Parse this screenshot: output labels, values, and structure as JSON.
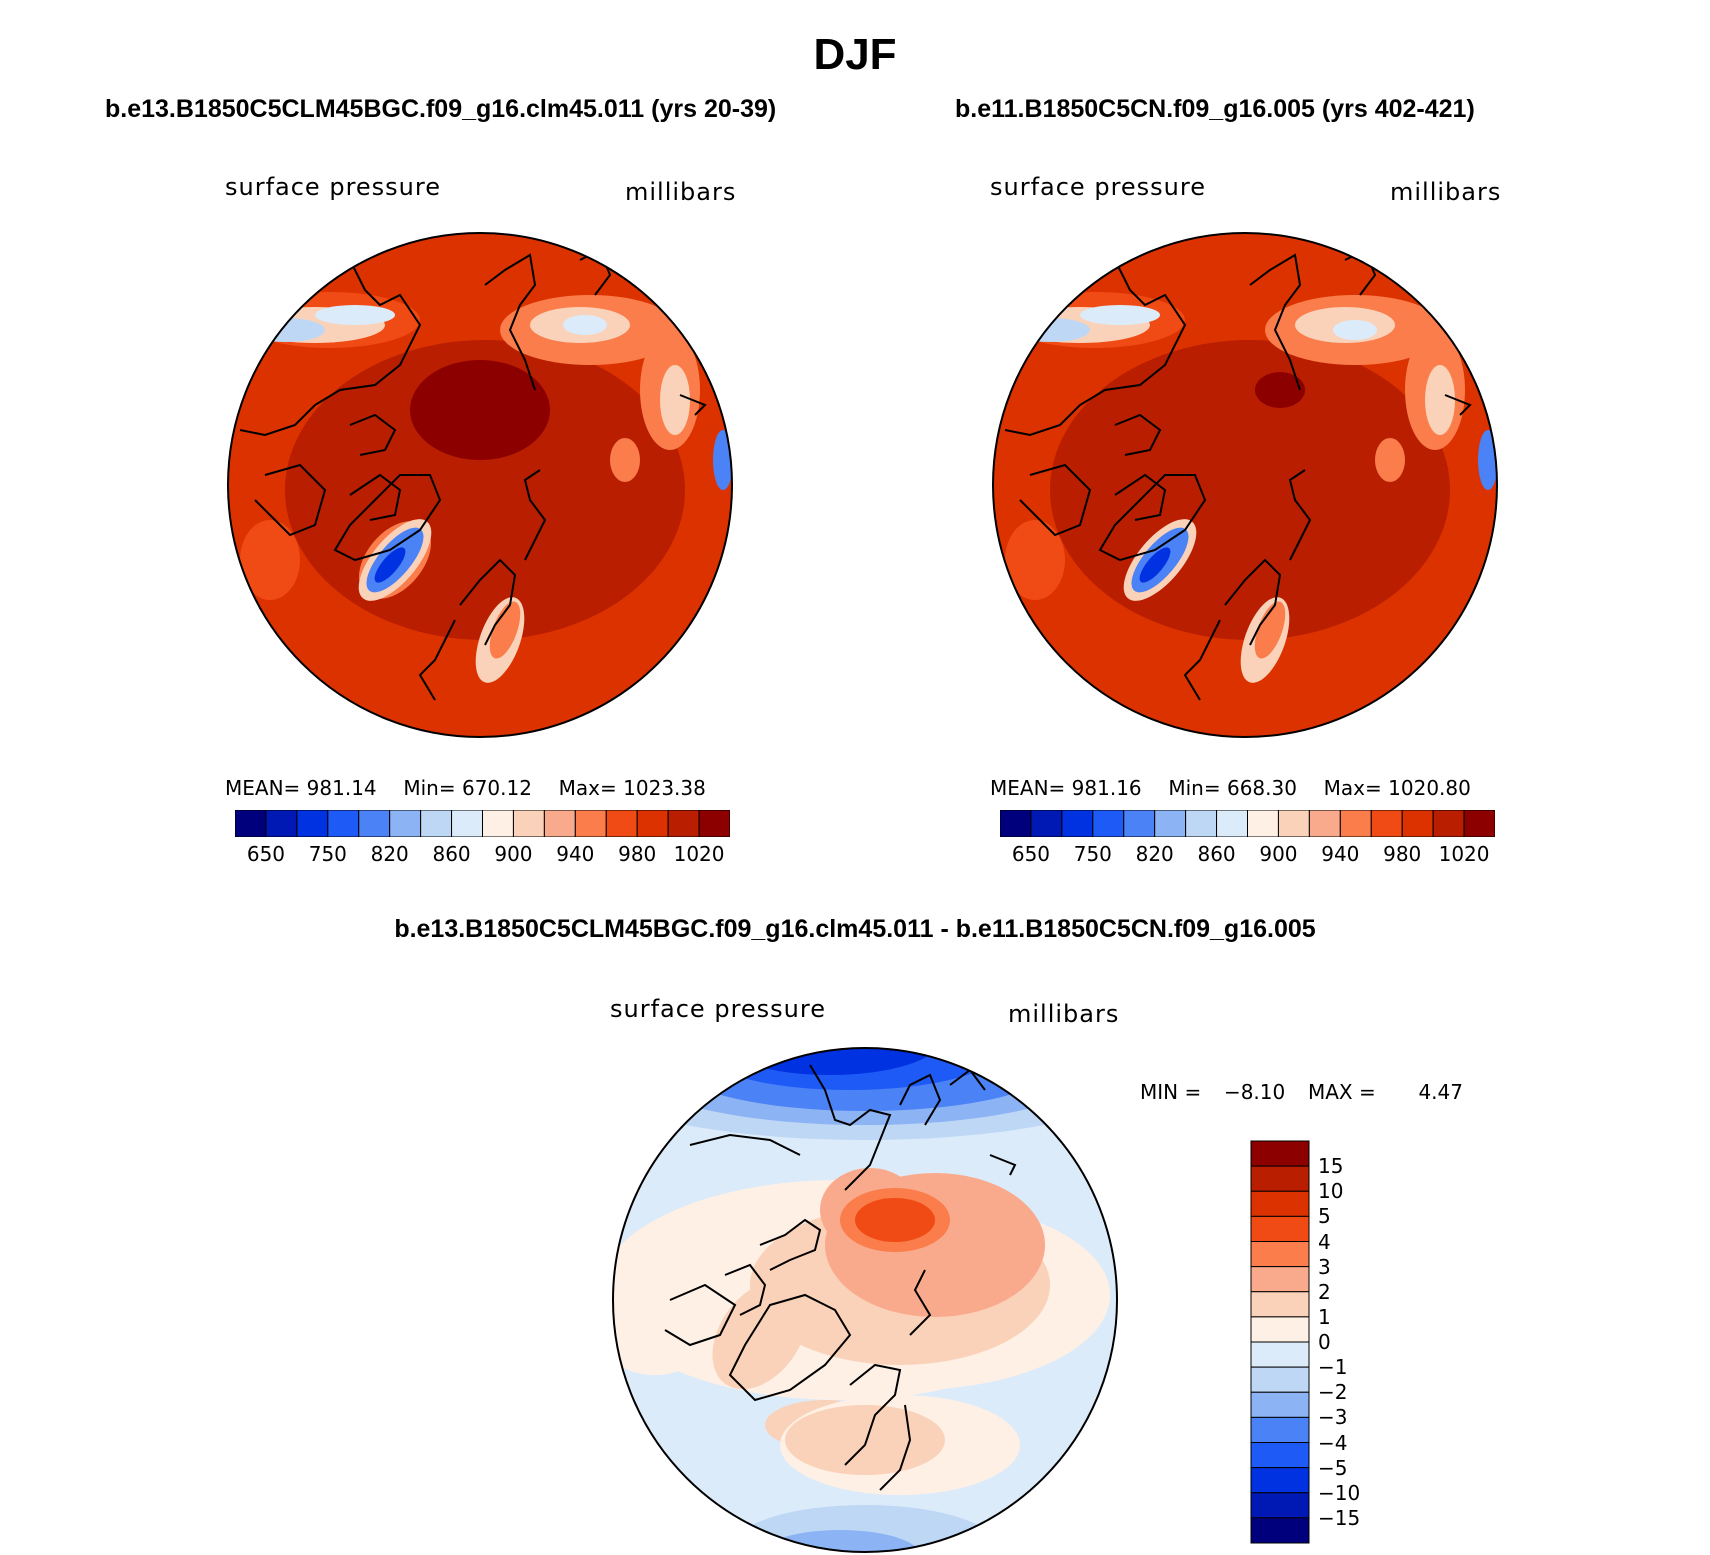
{
  "title": "DJF",
  "units_label": "millibars",
  "variable_label": "surface pressure",
  "abs_palette": [
    "#00007d",
    "#0019b4",
    "#0032e1",
    "#1e5af5",
    "#4b82f5",
    "#8cb4f5",
    "#bed7f5",
    "#dcebfa",
    "#fff0e6",
    "#fad2b9",
    "#faaa8c",
    "#fa7d4b",
    "#f04b14",
    "#dc3200",
    "#b91e00",
    "#8c0000"
  ],
  "abs_ticks": [
    "650",
    "750",
    "820",
    "860",
    "900",
    "940",
    "980",
    "1020"
  ],
  "diff_palette": [
    "#00007d",
    "#0019b4",
    "#0032e1",
    "#1e5af5",
    "#4b82f5",
    "#8cb4f5",
    "#bed7f5",
    "#dcebfa",
    "#fff0e6",
    "#fad2b9",
    "#faaa8c",
    "#fa7d4b",
    "#f04b14",
    "#dc3200",
    "#b91e00",
    "#8c0000"
  ],
  "diff_ticks": [
    "15",
    "10",
    "5",
    "4",
    "3",
    "2",
    "1",
    "0",
    "−1",
    "−2",
    "−3",
    "−4",
    "−5",
    "−10",
    "−15"
  ],
  "panels": [
    {
      "title": "b.e13.B1850C5CLM45BGC.f09_g16.clm45.011 (yrs 20-39)",
      "mean_label": "MEAN=",
      "mean": "981.14",
      "min_label": "Min=",
      "min": "670.12",
      "max_label": "Max=",
      "max": "1023.38"
    },
    {
      "title": "b.e11.B1850C5CN.f09_g16.005 (yrs 402-421)",
      "mean_label": "MEAN=",
      "mean": "981.16",
      "min_label": "Min=",
      "min": "668.30",
      "max_label": "Max=",
      "max": "1020.80"
    }
  ],
  "difference": {
    "title": "b.e13.B1850C5CLM45BGC.f09_g16.clm45.011 - b.e11.B1850C5CN.f09_g16.005",
    "min_label": "MIN =",
    "min": "−8.10",
    "max_label": "MAX =",
    "max": "4.47"
  },
  "chart_data": [
    {
      "type": "heatmap",
      "projection": "north polar stereographic",
      "title": "b.e13.B1850C5CLM45BGC.f09_g16.clm45.011 (yrs 20-39)",
      "variable": "surface pressure",
      "units": "millibars",
      "mean": 981.14,
      "min": 670.12,
      "max": 1023.38,
      "colorbar_ticks": [
        650,
        750,
        820,
        860,
        900,
        940,
        980,
        1020
      ]
    },
    {
      "type": "heatmap",
      "projection": "north polar stereographic",
      "title": "b.e11.B1850C5CN.f09_g16.005 (yrs 402-421)",
      "variable": "surface pressure",
      "units": "millibars",
      "mean": 981.16,
      "min": 668.3,
      "max": 1020.8,
      "colorbar_ticks": [
        650,
        750,
        820,
        860,
        900,
        940,
        980,
        1020
      ]
    },
    {
      "type": "heatmap",
      "projection": "north polar stereographic",
      "title": "b.e13.B1850C5CLM45BGC.f09_g16.clm45.011 - b.e11.B1850C5CN.f09_g16.005",
      "variable": "surface pressure",
      "units": "millibars",
      "min": -8.1,
      "max": 4.47,
      "colorbar_ticks": [
        15,
        10,
        5,
        4,
        3,
        2,
        1,
        0,
        -1,
        -2,
        -3,
        -4,
        -5,
        -10,
        -15
      ]
    }
  ]
}
